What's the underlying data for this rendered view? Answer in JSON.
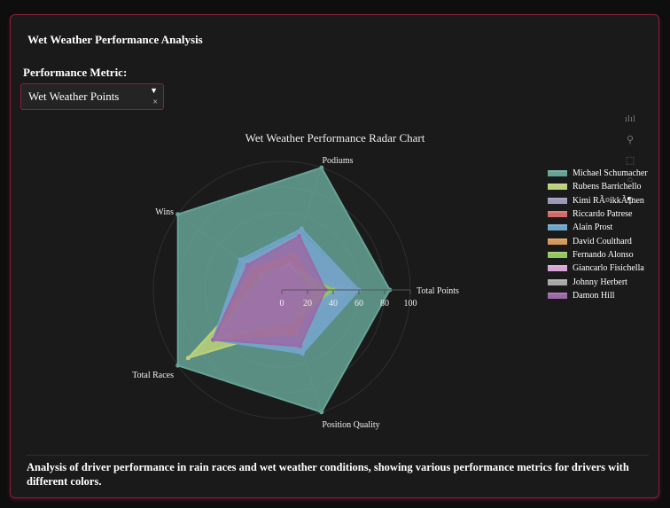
{
  "page": {
    "title": "Wet Weather Performance Analysis",
    "metric_label": "Performance Metric:",
    "dropdown": {
      "value": "Wet Weather Points",
      "caret_icon": "▼",
      "clear_icon": "×"
    },
    "description": "Analysis of driver performance in rain races and wet weather conditions, showing various performance metrics for drivers with different colors."
  },
  "modebar": [
    "bar-chart-icon",
    "zoom-icon",
    "select-icon",
    "lasso-icon",
    "camera-icon"
  ],
  "chart_data": {
    "type": "radar",
    "title": "Wet Weather Performance Radar Chart",
    "axes": [
      "Total Points",
      "Podiums",
      "Wins",
      "Total Races",
      "Position Quality"
    ],
    "radial_ticks": [
      "0",
      "20",
      "40",
      "60",
      "80",
      "100"
    ],
    "range": [
      0,
      100
    ],
    "legend_position": "right",
    "series": [
      {
        "name": "Michael Schumacher",
        "color": "#66a397",
        "values": [
          84,
          100,
          100,
          100,
          100
        ]
      },
      {
        "name": "Rubens Barrichello",
        "color": "#bcd27a",
        "values": [
          52,
          18,
          18,
          90,
          30
        ]
      },
      {
        "name": "Kimi RÃ¤ikkÃ¶nen",
        "color": "#9a98b8",
        "values": [
          60,
          46,
          37,
          66,
          50
        ]
      },
      {
        "name": "Riccardo Patrese",
        "color": "#d36a6a",
        "values": [
          30,
          26,
          27,
          66,
          32
        ]
      },
      {
        "name": "Alain Prost",
        "color": "#6fa5c8",
        "values": [
          60,
          50,
          40,
          66,
          52
        ]
      },
      {
        "name": "David Coulthard",
        "color": "#d49a5a",
        "values": [
          28,
          30,
          28,
          66,
          36
        ]
      },
      {
        "name": "Fernando Alonso",
        "color": "#93c55f",
        "values": [
          40,
          20,
          20,
          66,
          26
        ]
      },
      {
        "name": "Giancarlo Fisichella",
        "color": "#d7a5d4",
        "values": [
          18,
          22,
          16,
          64,
          20
        ]
      },
      {
        "name": "Johnny Herbert",
        "color": "#a7a7a7",
        "values": [
          24,
          18,
          18,
          60,
          26
        ]
      },
      {
        "name": "Damon Hill",
        "color": "#9a6aa6",
        "values": [
          34,
          44,
          33,
          66,
          46
        ]
      }
    ]
  }
}
